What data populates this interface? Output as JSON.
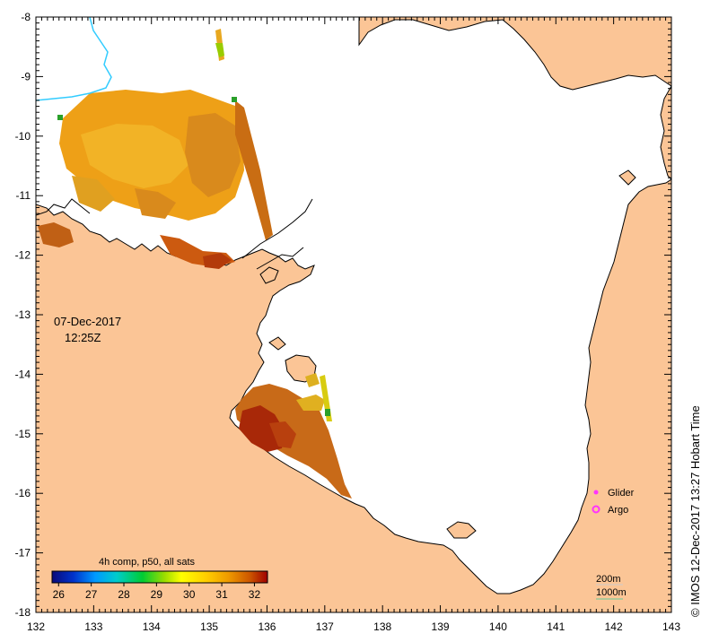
{
  "map": {
    "timestamp_date": "07-Dec-2017",
    "timestamp_time": "12:25Z",
    "lon_ticks": [
      "132",
      "133",
      "134",
      "135",
      "136",
      "137",
      "138",
      "139",
      "140",
      "141",
      "142",
      "143"
    ],
    "lat_ticks": [
      "-8",
      "-9",
      "-10",
      "-11",
      "-12",
      "-13",
      "-14",
      "-15",
      "-16",
      "-17",
      "-18"
    ],
    "lon_range": [
      132,
      143
    ],
    "lat_range": [
      -8,
      -18
    ],
    "colorbar": {
      "title": "4h comp, p50, all sats",
      "labels": [
        "26",
        "27",
        "28",
        "29",
        "30",
        "31",
        "32"
      ],
      "min": 25.8,
      "max": 32.4
    },
    "legend": {
      "glider_label": "Glider",
      "argo_label": "Argo"
    },
    "scale": {
      "label_200m": "200m",
      "label_1000m": "1000m"
    },
    "credit": "© IMOS 12-Dec-2017 13:27 Hobart Time",
    "colors": {
      "land": "#fbc596",
      "ocean": "#ffffff",
      "river": "#33ccff",
      "glider": "#ff33ff",
      "argo": "#ff33ff",
      "isobath_1000": "#66cc99"
    }
  }
}
